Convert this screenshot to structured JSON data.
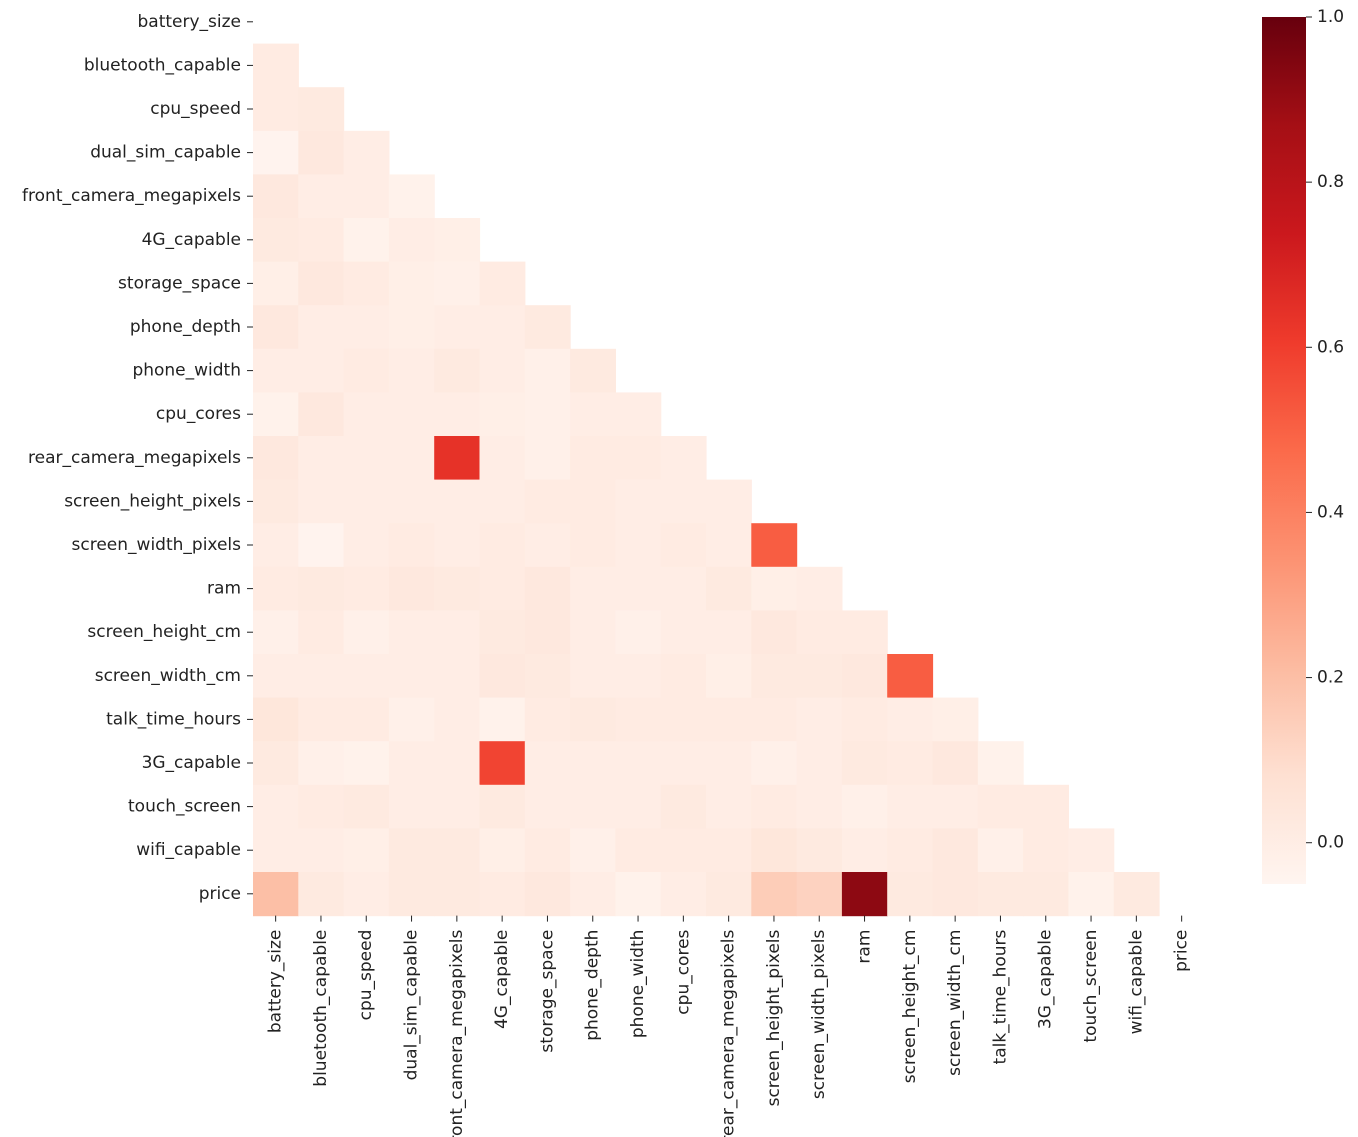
{
  "chart_data": {
    "type": "heatmap",
    "title": "",
    "xlabel": "",
    "ylabel": "",
    "mask": "upper-triangle-including-diagonal",
    "colormap": "Reds",
    "color_range": [
      -0.05,
      1.0
    ],
    "colorbar_ticks": [
      0.0,
      0.2,
      0.4,
      0.6,
      0.8,
      1.0
    ],
    "colorbar_tick_labels": [
      "0.0",
      "0.2",
      "0.4",
      "0.6",
      "0.8",
      "1.0"
    ],
    "labels": [
      "battery_size",
      "bluetooth_capable",
      "cpu_speed",
      "dual_sim_capable",
      "front_camera_megapixels",
      "4G_capable",
      "storage_space",
      "phone_depth",
      "phone_width",
      "cpu_cores",
      "rear_camera_megapixels",
      "screen_height_pixels",
      "screen_width_pixels",
      "ram",
      "screen_height_cm",
      "screen_width_cm",
      "talk_time_hours",
      "3G_capable",
      "touch_screen",
      "wifi_capable",
      "price"
    ],
    "matrix": [
      [],
      [
        0.01
      ],
      [
        0.01,
        0.02
      ],
      [
        -0.04,
        0.03,
        0.0
      ],
      [
        0.03,
        0.0,
        0.0,
        -0.03
      ],
      [
        0.02,
        0.01,
        -0.03,
        0.0,
        -0.01
      ],
      [
        -0.01,
        0.03,
        0.01,
        -0.01,
        -0.02,
        0.01
      ],
      [
        0.03,
        0.0,
        0.0,
        -0.01,
        0.0,
        0.0,
        0.02
      ],
      [
        0.0,
        0.0,
        0.01,
        0.0,
        0.02,
        0.0,
        -0.02,
        0.02
      ],
      [
        -0.03,
        0.03,
        0.0,
        0.0,
        0.0,
        -0.01,
        -0.02,
        0.0,
        0.0
      ],
      [
        0.03,
        0.0,
        0.0,
        0.0,
        0.64,
        0.0,
        -0.02,
        0.01,
        0.01,
        0.0
      ],
      [
        0.02,
        0.0,
        0.0,
        0.0,
        0.0,
        0.0,
        0.01,
        0.01,
        0.0,
        0.0,
        0.0
      ],
      [
        0.0,
        -0.04,
        0.0,
        0.01,
        0.0,
        0.01,
        0.0,
        0.01,
        0.0,
        0.01,
        0.0,
        0.51
      ],
      [
        0.01,
        0.02,
        0.01,
        0.03,
        0.02,
        0.01,
        0.03,
        0.0,
        0.0,
        0.0,
        0.02,
        -0.01,
        0.0
      ],
      [
        -0.02,
        0.01,
        -0.02,
        0.0,
        0.0,
        0.02,
        0.03,
        0.0,
        -0.02,
        0.0,
        0.0,
        0.03,
        0.01,
        0.01
      ],
      [
        0.0,
        0.0,
        0.0,
        0.0,
        0.0,
        0.03,
        0.02,
        0.0,
        0.0,
        0.01,
        -0.01,
        0.02,
        0.02,
        0.03,
        0.51
      ],
      [
        0.04,
        0.01,
        0.01,
        -0.02,
        0.0,
        -0.03,
        0.01,
        0.02,
        0.01,
        0.01,
        0.01,
        0.01,
        0.0,
        0.01,
        0.0,
        -0.01
      ],
      [
        0.02,
        -0.02,
        -0.03,
        0.0,
        0.0,
        0.58,
        0.0,
        0.0,
        0.0,
        0.0,
        0.0,
        -0.02,
        0.0,
        0.02,
        0.01,
        0.03,
        -0.03
      ],
      [
        0.0,
        0.01,
        0.02,
        0.0,
        0.0,
        0.02,
        0.0,
        0.0,
        0.0,
        0.02,
        0.0,
        0.01,
        0.0,
        -0.02,
        0.0,
        0.0,
        0.01,
        0.01
      ],
      [
        0.0,
        0.0,
        -0.01,
        0.02,
        0.02,
        -0.01,
        0.01,
        -0.02,
        0.01,
        0.01,
        0.01,
        0.04,
        0.02,
        0.0,
        0.01,
        0.03,
        -0.02,
        0.01,
        0.0
      ],
      [
        0.2,
        0.02,
        0.0,
        0.02,
        0.02,
        0.01,
        0.03,
        0.0,
        -0.03,
        0.0,
        0.02,
        0.15,
        0.13,
        0.92,
        0.02,
        0.03,
        0.02,
        0.02,
        -0.03,
        0.02
      ]
    ]
  }
}
